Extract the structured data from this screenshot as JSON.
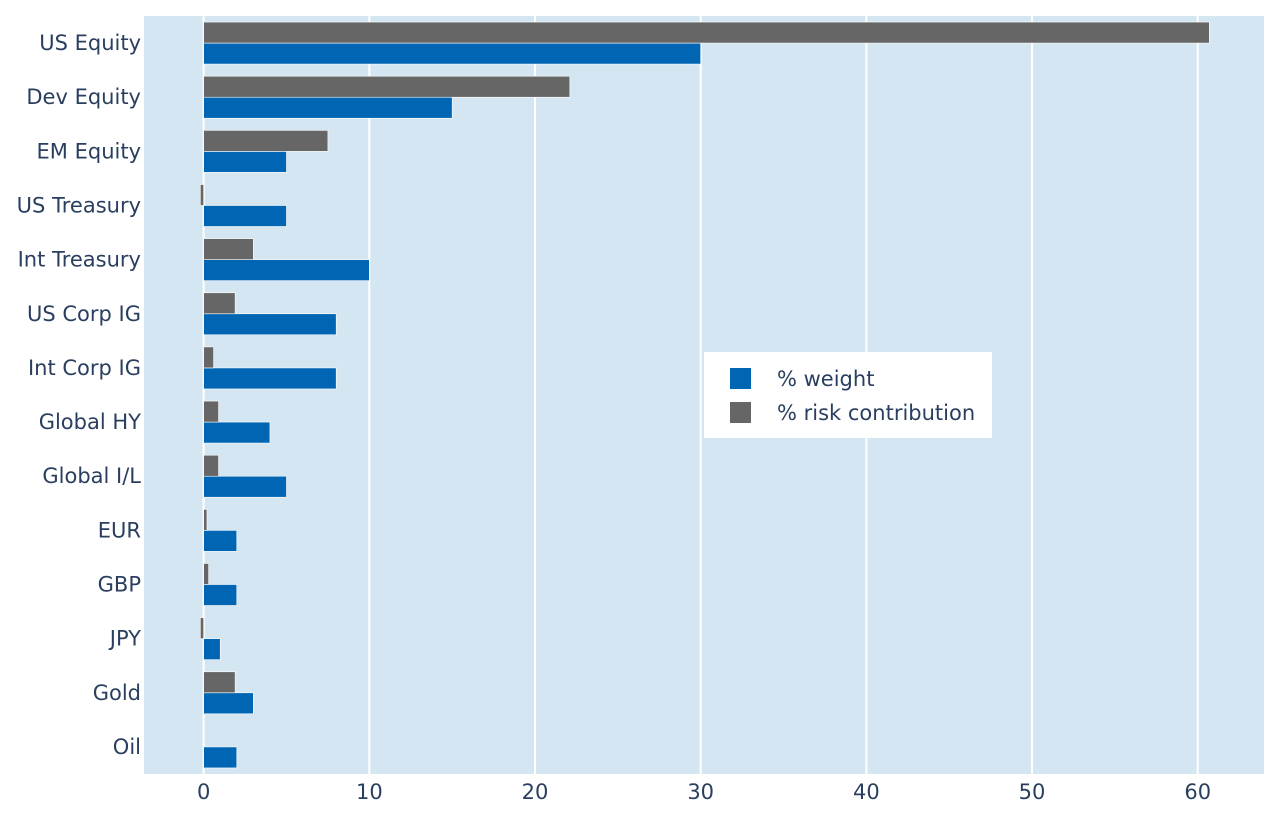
{
  "chart_data": {
    "type": "bar",
    "orientation": "horizontal",
    "categories": [
      "US Equity",
      "Dev Equity",
      "EM Equity",
      "US Treasury",
      "Int Treasury",
      "US Corp IG",
      "Int Corp IG",
      "Global HY",
      "Global I/L",
      "EUR",
      "GBP",
      "JPY",
      "Gold",
      "Oil"
    ],
    "series": [
      {
        "name": "% weight",
        "color": "#0066b3",
        "values": [
          30,
          15,
          5,
          5,
          10,
          8,
          8,
          4,
          5,
          2,
          2,
          1,
          3,
          2
        ]
      },
      {
        "name": "% risk contribution",
        "color": "#666666",
        "values": [
          60.7,
          22.1,
          7.5,
          -0.2,
          3.0,
          1.9,
          0.6,
          0.9,
          0.9,
          0.2,
          0.3,
          -0.2,
          1.9,
          0
        ]
      }
    ],
    "x_ticks": [
      0,
      10,
      20,
      30,
      40,
      50,
      60
    ],
    "xlim": [
      -3.6,
      64.0
    ],
    "grid": true,
    "legend_position": "center-right",
    "plot_background": "#d4e6f2"
  }
}
